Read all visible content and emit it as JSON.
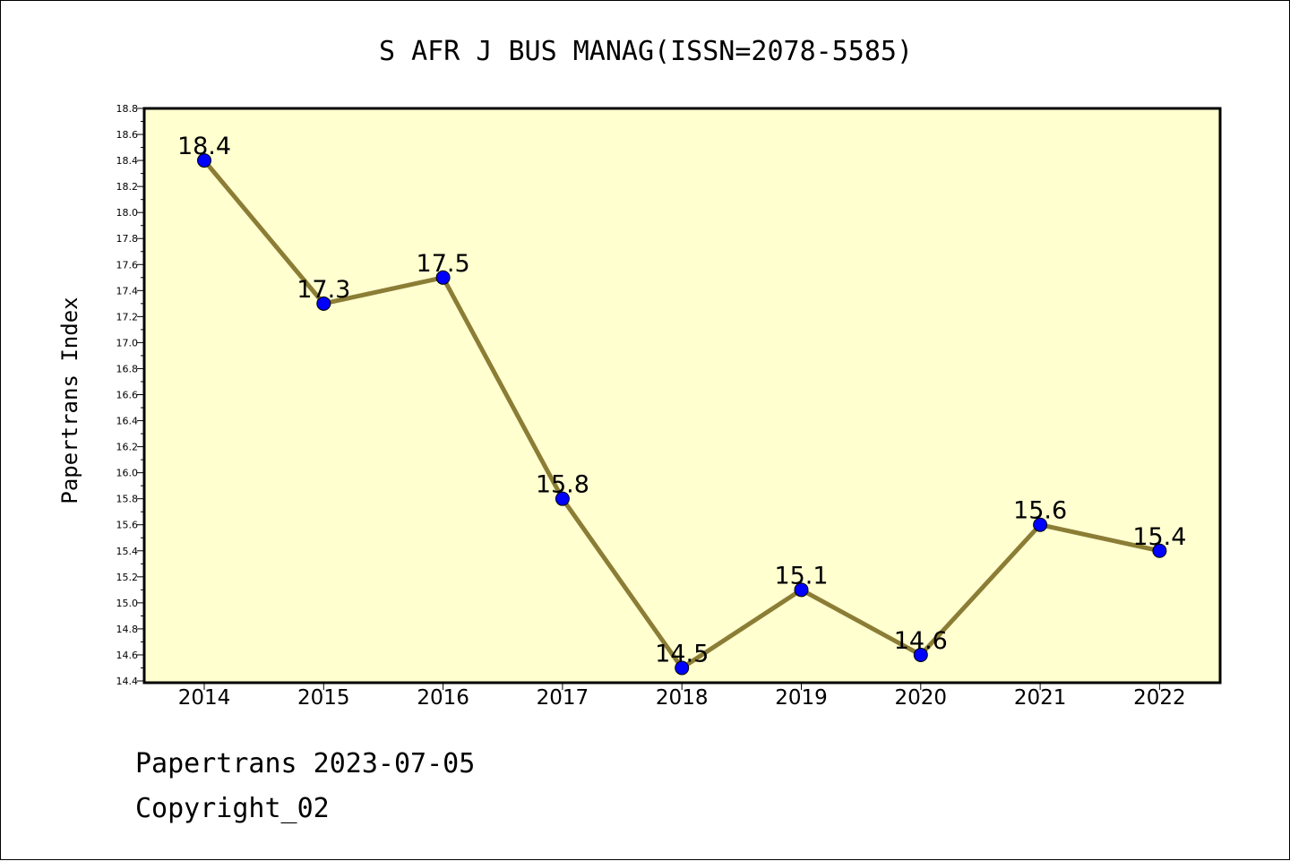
{
  "chart_data": {
    "type": "line",
    "title": "S AFR J BUS MANAG(ISSN=2078-5585)",
    "ylabel": "Papertrans Index",
    "xlabel": "",
    "categories": [
      "2014",
      "2015",
      "2016",
      "2017",
      "2018",
      "2019",
      "2020",
      "2021",
      "2022"
    ],
    "values": [
      18.4,
      17.3,
      17.5,
      15.8,
      14.5,
      15.1,
      14.6,
      15.6,
      15.4
    ],
    "data_labels": [
      "18.4",
      "17.3",
      "17.5",
      "15.8",
      "14.5",
      "15.1",
      "14.6",
      "15.6",
      "15.4"
    ],
    "ylim": [
      14.4,
      18.8
    ],
    "yticks": [
      "14.4",
      "14.6",
      "14.8",
      "15.0",
      "15.2",
      "15.4",
      "15.6",
      "15.8",
      "16.0",
      "16.2",
      "16.4",
      "16.6",
      "16.8",
      "17.0",
      "17.2",
      "17.4",
      "17.6",
      "17.8",
      "18.0",
      "18.2",
      "18.4",
      "18.6",
      "18.8"
    ],
    "grid": false,
    "colors": {
      "plot_background": "#ffffd0",
      "line": "#8b7d35",
      "marker": "#0000ff"
    }
  },
  "footer": {
    "line1": "Papertrans 2023-07-05",
    "line2": "Copyright_02"
  }
}
